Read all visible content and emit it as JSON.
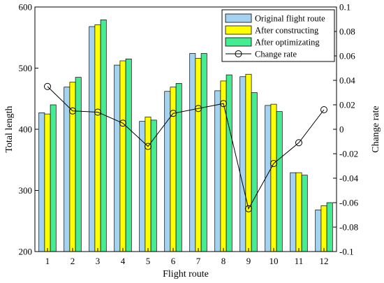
{
  "chart_data": {
    "type": "bar",
    "xlabel": "Flight route",
    "ylabel": "Total length",
    "y2label": "Change rate",
    "categories": [
      "1",
      "2",
      "3",
      "4",
      "5",
      "6",
      "7",
      "8",
      "9",
      "10",
      "11",
      "12"
    ],
    "ylim": [
      200,
      600
    ],
    "yticks": [
      "200",
      "300",
      "400",
      "500",
      "600"
    ],
    "y2lim": [
      -0.1,
      0.1
    ],
    "y2ticks": [
      "-0.1",
      "-0.08",
      "-0.06",
      "-0.04",
      "-0.02",
      "0",
      "0.02",
      "0.04",
      "0.06",
      "0.08",
      "0.1"
    ],
    "grid": false,
    "legend_position": "top-right",
    "series": [
      {
        "name": "Original flight route",
        "type": "bar",
        "axis": "left",
        "color": "#a6d2f2",
        "values": [
          427,
          469,
          568,
          505,
          413,
          462,
          524,
          463,
          486,
          439,
          329,
          268
        ]
      },
      {
        "name": "After constructing",
        "type": "bar",
        "axis": "left",
        "color": "#ffff00",
        "values": [
          425,
          477,
          571,
          512,
          420,
          469,
          516,
          479,
          490,
          441,
          329,
          275
        ]
      },
      {
        "name": "After optimizating",
        "type": "bar",
        "axis": "left",
        "color": "#44ee90",
        "values": [
          440,
          485,
          579,
          515,
          415,
          475,
          524,
          489,
          460,
          429,
          325,
          280
        ]
      },
      {
        "name": "Change rate",
        "type": "line",
        "axis": "right",
        "color": "#000000",
        "values": [
          0.035,
          0.015,
          0.014,
          0.005,
          -0.014,
          0.013,
          0.017,
          0.021,
          -0.065,
          -0.028,
          -0.011,
          0.016
        ]
      }
    ]
  }
}
